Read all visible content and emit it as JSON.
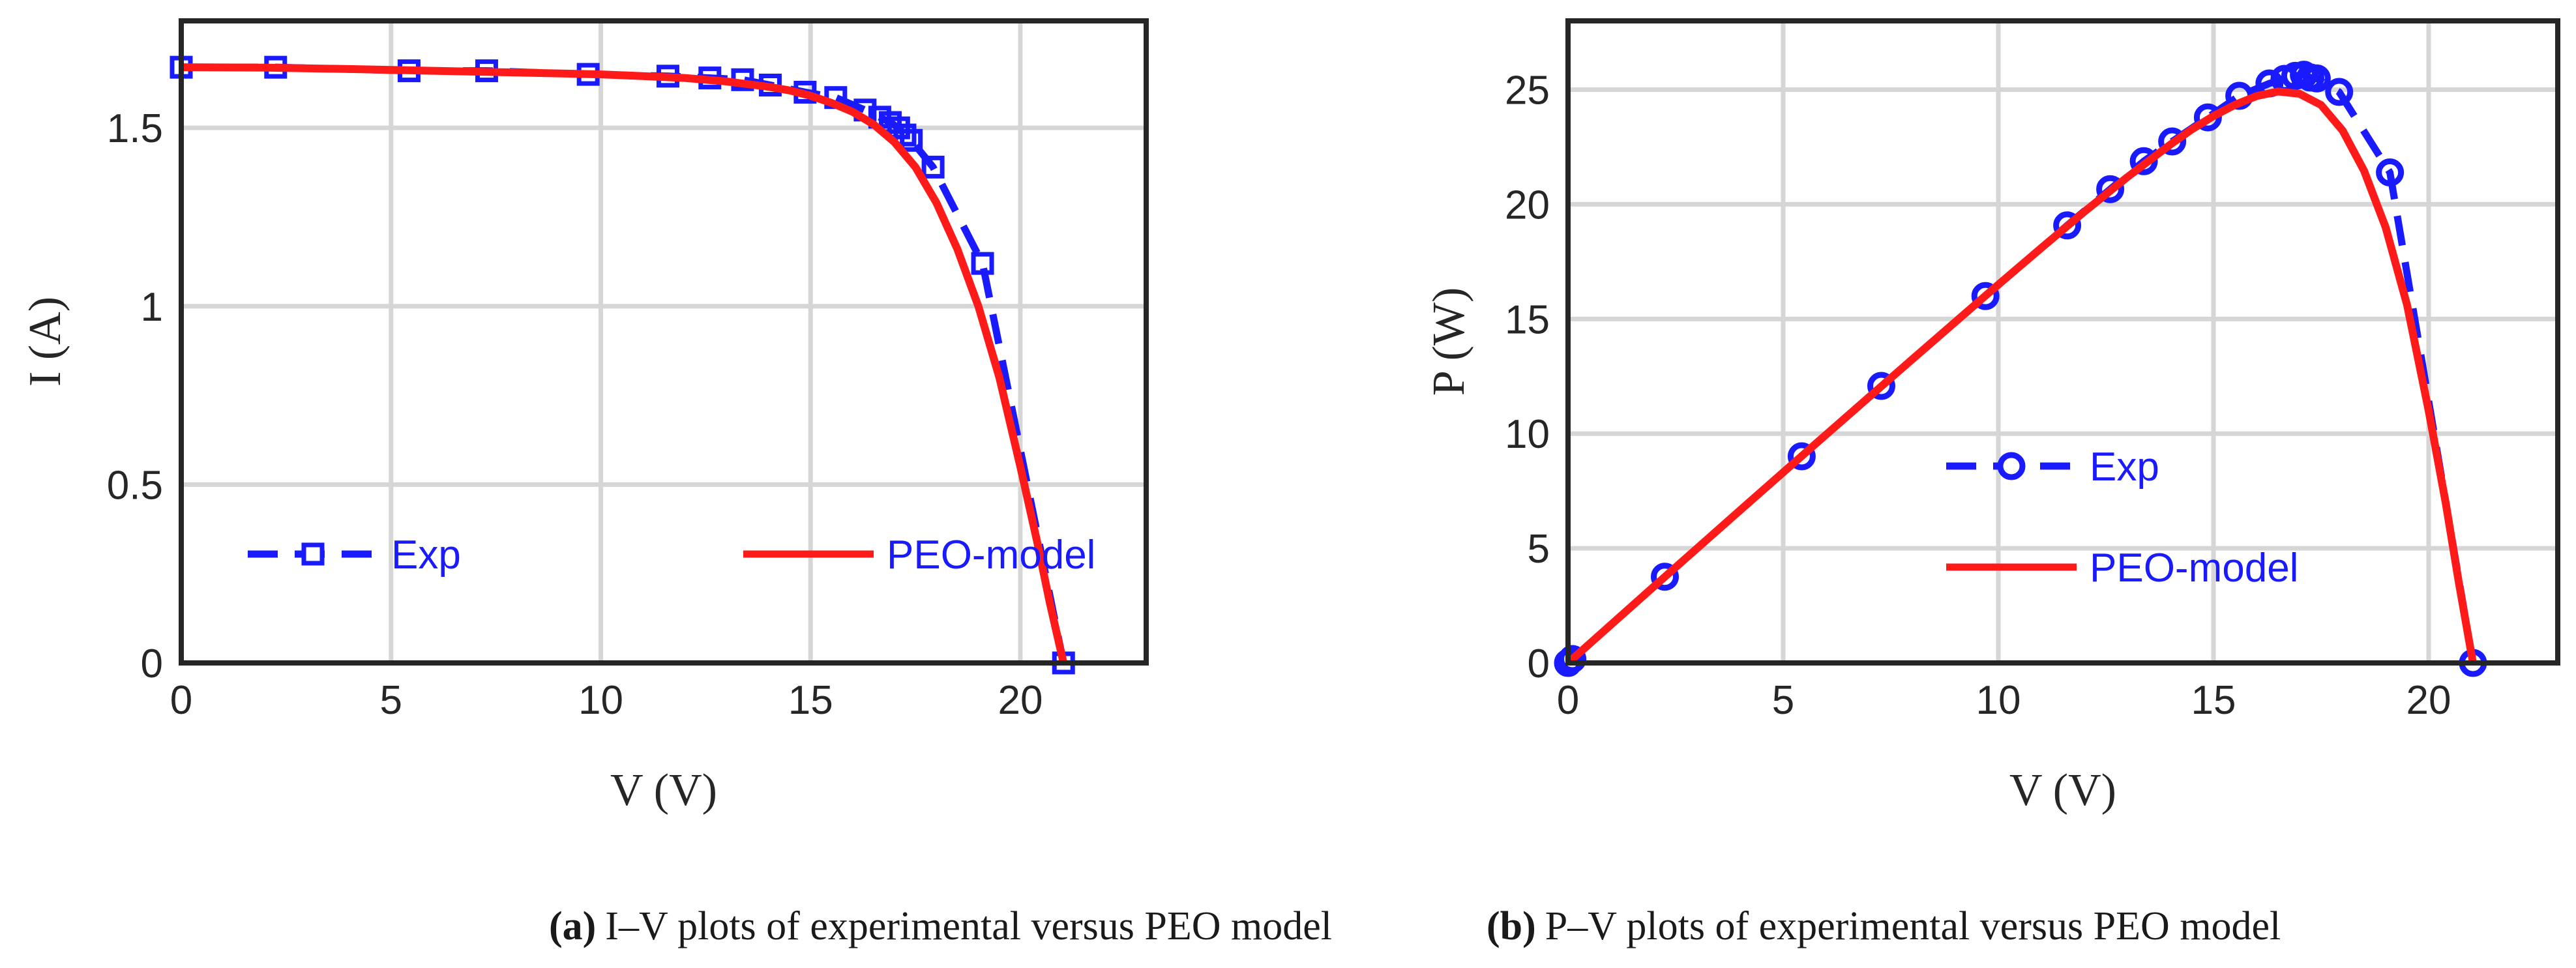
{
  "chart_data": [
    {
      "type": "line",
      "panel": "a",
      "xlabel": "V (V)",
      "ylabel": "I (A)",
      "xlim": [
        0,
        23
      ],
      "ylim": [
        0,
        1.8
      ],
      "xticks": [
        "0",
        "5",
        "10",
        "15",
        "20"
      ],
      "xtick_values": [
        0,
        5,
        10,
        15,
        20
      ],
      "yticks": [
        "0",
        "0.5",
        "1",
        "1.5"
      ],
      "ytick_values": [
        0,
        0.5,
        1,
        1.5
      ],
      "grid": true,
      "legend_position": "lower-left",
      "series": [
        {
          "name": "Exp",
          "style": "dashed",
          "marker": "square",
          "color": "#1a1aff",
          "x": [
            0,
            2.25,
            5.43,
            7.28,
            9.7,
            11.6,
            12.6,
            13.38,
            14.04,
            14.87,
            15.6,
            16.3,
            16.65,
            16.9,
            17.1,
            17.25,
            17.4,
            17.92,
            19.1,
            21.03
          ],
          "y": [
            1.67,
            1.67,
            1.66,
            1.66,
            1.65,
            1.645,
            1.64,
            1.635,
            1.62,
            1.6,
            1.585,
            1.55,
            1.53,
            1.515,
            1.5,
            1.48,
            1.465,
            1.39,
            1.12,
            0
          ]
        },
        {
          "name": "PEO-model",
          "style": "solid",
          "marker": "none",
          "color": "#ff1a1a",
          "x": [
            0,
            2,
            4,
            6,
            8,
            10,
            11,
            12,
            13,
            14,
            14.5,
            15,
            15.5,
            16,
            16.5,
            17,
            17.5,
            18,
            18.5,
            19,
            19.5,
            20,
            20.4,
            20.7,
            21.03
          ],
          "y": [
            1.67,
            1.669,
            1.665,
            1.66,
            1.655,
            1.65,
            1.645,
            1.64,
            1.63,
            1.615,
            1.605,
            1.59,
            1.57,
            1.545,
            1.51,
            1.46,
            1.39,
            1.29,
            1.16,
            1.0,
            0.8,
            0.55,
            0.34,
            0.17,
            0
          ]
        }
      ],
      "caption_label": "(a)",
      "caption_text": "I–V plots of experimental versus PEO model"
    },
    {
      "type": "line",
      "panel": "b",
      "xlabel": "V (V)",
      "ylabel": "P (W)",
      "xlim": [
        0,
        23
      ],
      "ylim": [
        0,
        28
      ],
      "xticks": [
        "0",
        "5",
        "10",
        "15",
        "20"
      ],
      "xtick_values": [
        0,
        5,
        10,
        15,
        20
      ],
      "yticks": [
        "0",
        "5",
        "10",
        "15",
        "20",
        "25"
      ],
      "ytick_values": [
        0,
        5,
        10,
        15,
        20,
        25
      ],
      "grid": true,
      "legend_position": "center-left",
      "series": [
        {
          "name": "Exp",
          "style": "dashed",
          "marker": "circle",
          "color": "#1a1aff",
          "x": [
            0,
            0.1,
            2.25,
            5.43,
            7.28,
            9.7,
            11.6,
            12.6,
            13.38,
            14.04,
            14.87,
            15.6,
            16.3,
            16.65,
            16.9,
            17.1,
            17.25,
            17.4,
            17.92,
            19.1,
            21.03
          ],
          "y": [
            0,
            0.17,
            3.76,
            9.01,
            12.08,
            16.0,
            19.08,
            20.66,
            21.88,
            22.74,
            23.79,
            24.73,
            25.27,
            25.47,
            25.6,
            25.65,
            25.53,
            25.49,
            24.9,
            21.39,
            0
          ]
        },
        {
          "name": "PEO-model",
          "style": "solid",
          "marker": "none",
          "color": "#ff1a1a",
          "x": [
            0,
            2,
            4,
            6,
            8,
            10,
            11,
            12,
            13,
            14,
            14.5,
            15,
            15.5,
            16,
            16.5,
            17,
            17.5,
            18,
            18.5,
            19,
            19.5,
            20,
            20.4,
            20.7,
            21.03
          ],
          "y": [
            0,
            3.34,
            6.66,
            9.96,
            13.24,
            16.5,
            18.1,
            19.68,
            21.19,
            22.61,
            23.27,
            23.85,
            24.34,
            24.72,
            24.92,
            24.82,
            24.33,
            23.22,
            21.46,
            19.0,
            15.6,
            11.0,
            6.94,
            3.52,
            0
          ]
        }
      ],
      "caption_label": "(b)",
      "caption_text": "P–V plots of experimental versus PEO model"
    }
  ]
}
